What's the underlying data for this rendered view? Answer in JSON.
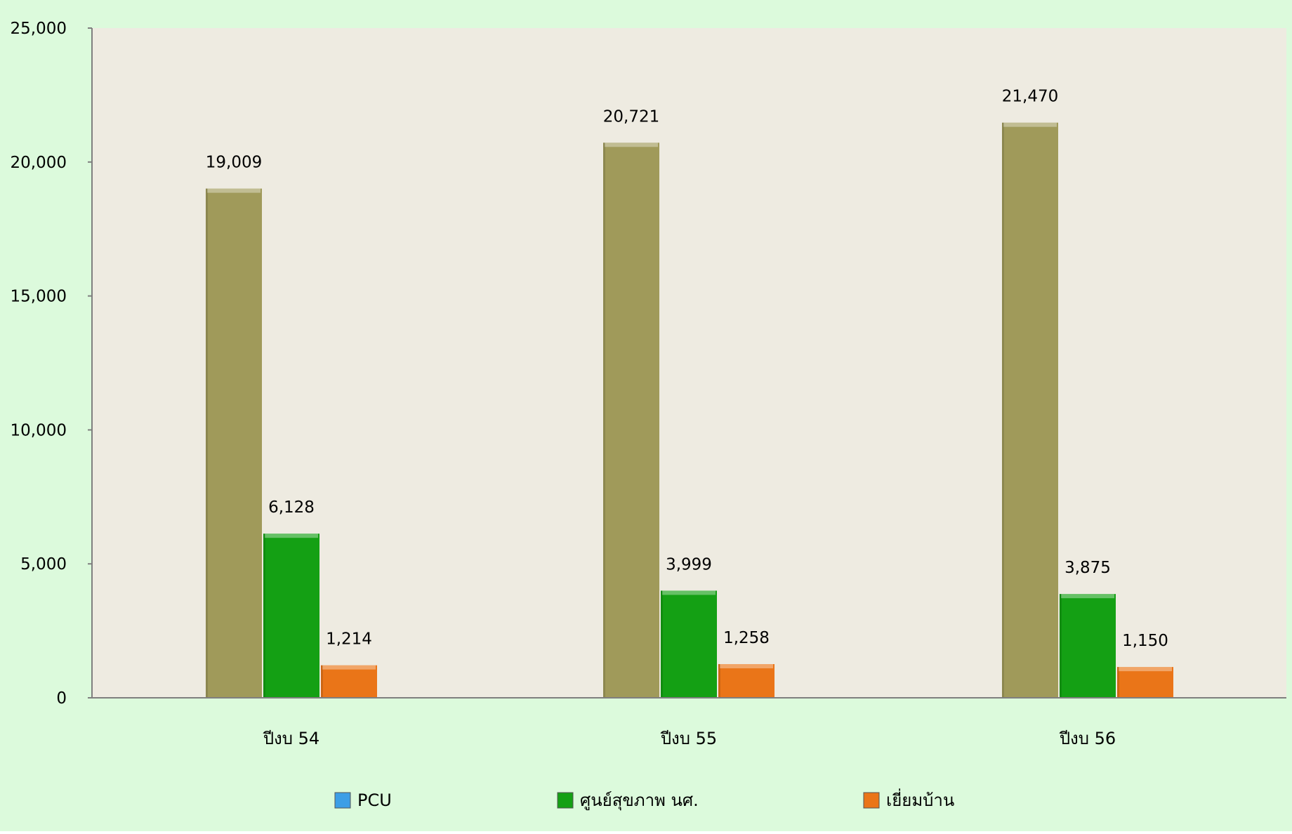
{
  "colors": {
    "background": "#dcfadc",
    "plot_area": "#eeebe1",
    "axis": "#7f7f7f",
    "PCU": "#3c9ee6",
    "health_center": "#14a014",
    "home_visit": "#ea7518",
    "olive_bar": "#a09a5a"
  },
  "chart_data": {
    "type": "bar",
    "categories": [
      "ปีงบ 54",
      "ปีงบ 55",
      "ปีงบ 56"
    ],
    "series": [
      {
        "name": "PCU",
        "values": [
          19009,
          20721,
          21470
        ],
        "bar_color": "#a09a5a",
        "legend_color": "#3c9ee6"
      },
      {
        "name": "ศูนย์สุขภาพ นศ.",
        "values": [
          6128,
          3999,
          3875
        ],
        "bar_color": "#14a014",
        "legend_color": "#14a014"
      },
      {
        "name": "เยี่ยมบ้าน",
        "values": [
          1214,
          1258,
          1150
        ],
        "bar_color": "#ea7518",
        "legend_color": "#ea7518"
      }
    ],
    "data_labels": [
      [
        "19,009",
        "20,721",
        "21,470"
      ],
      [
        "6,128",
        "3,999",
        "3,875"
      ],
      [
        "1,214",
        "1,258",
        "1,150"
      ]
    ],
    "ylim": [
      0,
      25000
    ],
    "y_ticks": [
      0,
      5000,
      10000,
      15000,
      20000,
      25000
    ],
    "y_tick_labels": [
      "0",
      "5,000",
      "10,000",
      "15,000",
      "20,000",
      "25,000"
    ],
    "grid": false,
    "legend_position": "bottom",
    "title": "",
    "xlabel": "",
    "ylabel": ""
  }
}
